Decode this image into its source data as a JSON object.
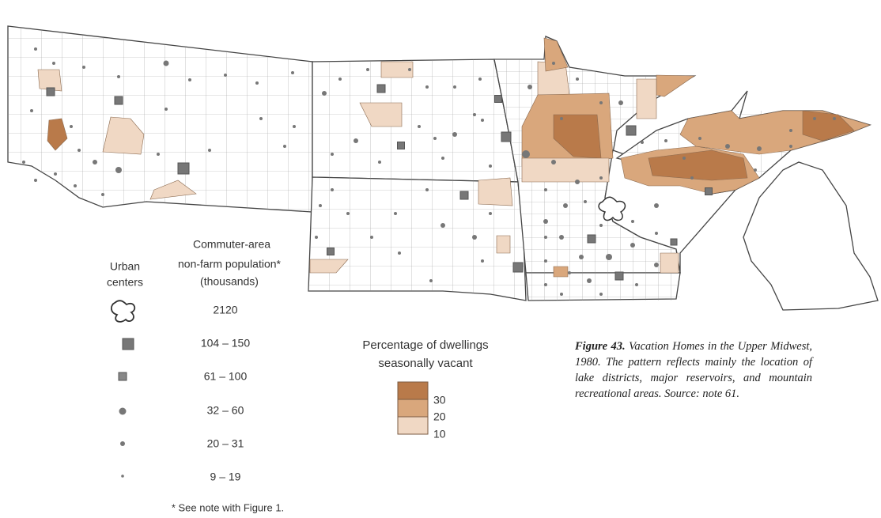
{
  "urban_legend": {
    "title": [
      "Urban",
      "centers"
    ]
  },
  "population_legend": {
    "title": [
      "Commuter-area",
      "non-farm population*",
      "(thousands)"
    ],
    "classes": [
      "2120",
      "104 – 150",
      "61 – 100",
      "32 – 60",
      "20 – 31",
      "9 – 19"
    ]
  },
  "vacancy_legend": {
    "title": [
      "Percentage of dwellings",
      "seasonally vacant"
    ],
    "labels": [
      30,
      20,
      10
    ]
  },
  "footnote": "* See note with Figure 1.",
  "caption": {
    "figure": "Figure 43.",
    "text": "Vacation Homes in the Upper Midwest, 1980. The pattern reflects mainly the location of lake districts, major reservoirs, and mountain recreational areas. Source: note 61."
  }
}
